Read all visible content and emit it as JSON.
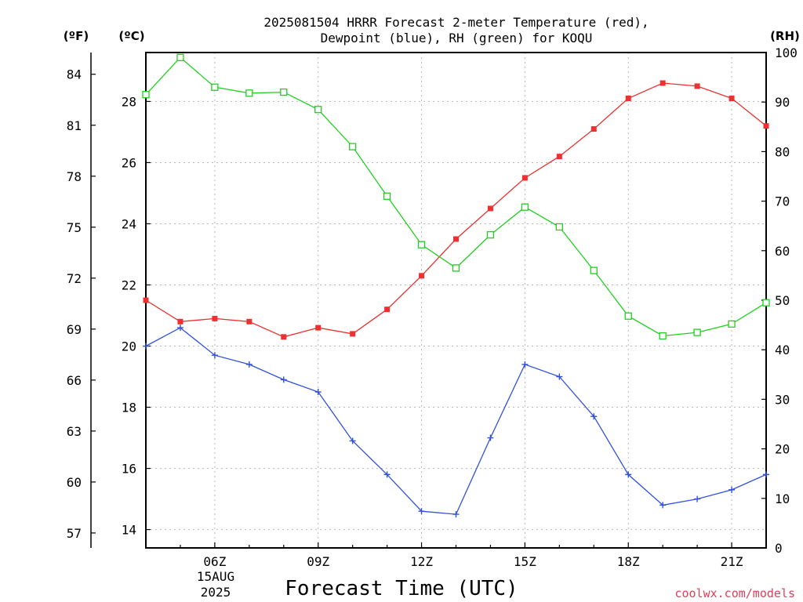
{
  "chart_data": {
    "type": "line",
    "title_line1": "2025081504 HRRR Forecast 2-meter Temperature (red),",
    "title_line2": "Dewpoint (blue), RH (green) for KOQU",
    "xlabel": "Forecast Time (UTC)",
    "date_label_line1": "15AUG",
    "date_label_line2": "2025",
    "credit": "coolwx.com/models",
    "left_f_unit": "(ºF)",
    "left_c_unit": "(ºC)",
    "right_unit": "(RH)",
    "x_hours": [
      4,
      5,
      6,
      7,
      8,
      9,
      10,
      11,
      12,
      13,
      14,
      15,
      16,
      17,
      18,
      19,
      20,
      21,
      22
    ],
    "x_tick_hours": [
      6,
      9,
      12,
      15,
      18,
      21
    ],
    "x_tick_labels": [
      "06Z",
      "09Z",
      "12Z",
      "15Z",
      "18Z",
      "21Z"
    ],
    "xlim": [
      4,
      22
    ],
    "c_ylim": [
      13.4,
      29.6
    ],
    "c_ticks": [
      14,
      16,
      18,
      20,
      22,
      24,
      26,
      28
    ],
    "c_tick_labels": [
      "14",
      "16",
      "18",
      "20",
      "22",
      "24",
      "26",
      "28"
    ],
    "f_ticks": [
      57,
      60,
      63,
      66,
      69,
      72,
      75,
      78,
      81,
      84
    ],
    "f_tick_labels": [
      "57",
      "60",
      "63",
      "66",
      "69",
      "72",
      "75",
      "78",
      "81",
      "84"
    ],
    "rh_ylim": [
      0,
      100
    ],
    "rh_ticks": [
      0,
      10,
      20,
      30,
      40,
      50,
      60,
      70,
      80,
      90,
      100
    ],
    "rh_tick_labels": [
      "0",
      "10",
      "20",
      "30",
      "40",
      "50",
      "60",
      "70",
      "80",
      "90",
      "100"
    ],
    "series": [
      {
        "axis": "c",
        "color": "#ee3030",
        "marker": "filled-square",
        "values": [
          21.5,
          20.8,
          20.9,
          20.8,
          20.3,
          20.6,
          20.4,
          21.2,
          22.3,
          23.5,
          24.5,
          25.5,
          26.2,
          27.1,
          28.1,
          28.6,
          28.5,
          28.1,
          27.2
        ]
      },
      {
        "axis": "c",
        "color": "#3050e0",
        "marker": "plus",
        "values": [
          20.0,
          20.6,
          19.7,
          19.4,
          18.9,
          18.5,
          16.9,
          15.8,
          14.6,
          14.5,
          17.0,
          19.4,
          19.0,
          17.7,
          15.8,
          14.8,
          15.0,
          15.3,
          15.8
        ]
      },
      {
        "axis": "rh",
        "color": "#20d020",
        "marker": "open-square",
        "values": [
          91.5,
          99.0,
          93.0,
          91.8,
          92.0,
          88.5,
          81.0,
          71.0,
          61.2,
          56.5,
          63.2,
          68.8,
          64.8,
          56.0,
          46.8,
          42.8,
          43.5,
          45.2,
          49.5
        ]
      }
    ]
  }
}
